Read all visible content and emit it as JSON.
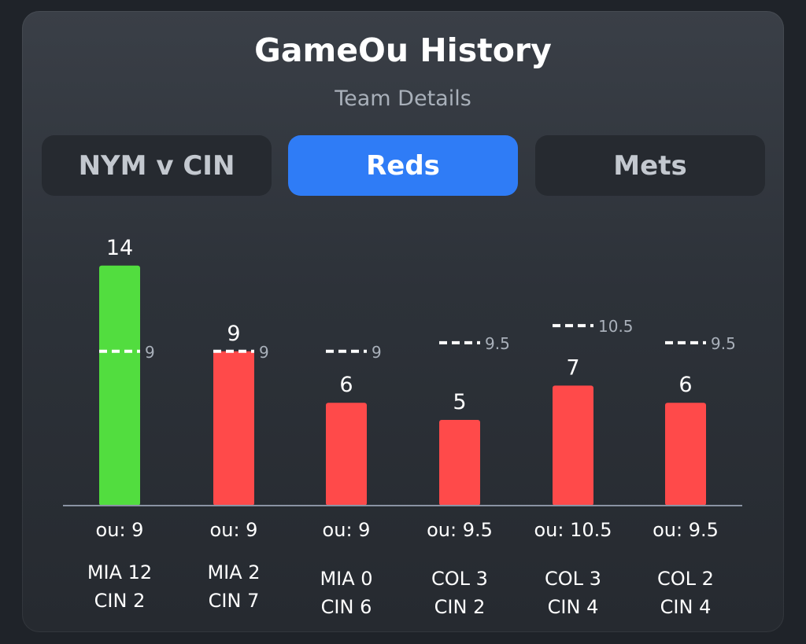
{
  "header": {
    "title": "GameOu History",
    "subtitle": "Team Details"
  },
  "tabs": [
    {
      "label": "NYM v CIN",
      "active": false
    },
    {
      "label": "Reds",
      "active": true
    },
    {
      "label": "Mets",
      "active": false
    }
  ],
  "colors": {
    "over": "#52dd3f",
    "under": "#ff4a4a",
    "accent": "#2f7cf6"
  },
  "chart_data": {
    "type": "bar",
    "categories": [
      "MIA 12 CIN 2",
      "MIA 2 CIN 7",
      "MIA 0 CIN 6",
      "COL 3 CIN 2",
      "COL 3 CIN 4",
      "COL 2 CIN 4"
    ],
    "values": [
      14,
      9,
      6,
      5,
      7,
      6
    ],
    "ou_lines": [
      9,
      9,
      9,
      9.5,
      10.5,
      9.5
    ],
    "ou_labels": [
      "ou: 9",
      "ou: 9",
      "ou: 9",
      "ou: 9.5",
      "ou: 10.5",
      "ou: 9.5"
    ],
    "games": [
      {
        "line1": "MIA 12",
        "line2": "CIN 2"
      },
      {
        "line1": "MIA 2",
        "line2": "CIN 7"
      },
      {
        "line1": "MIA 0",
        "line2": "CIN 6"
      },
      {
        "line1": "COL 3",
        "line2": "CIN 2"
      },
      {
        "line1": "COL 3",
        "line2": "CIN 4"
      },
      {
        "line1": "COL 2",
        "line2": "CIN 4"
      }
    ],
    "bar_colors": [
      "#52dd3f",
      "#ff4a4a",
      "#ff4a4a",
      "#ff4a4a",
      "#ff4a4a",
      "#ff4a4a"
    ],
    "ylim": [
      0,
      14
    ],
    "grid": false,
    "legend": "none"
  }
}
